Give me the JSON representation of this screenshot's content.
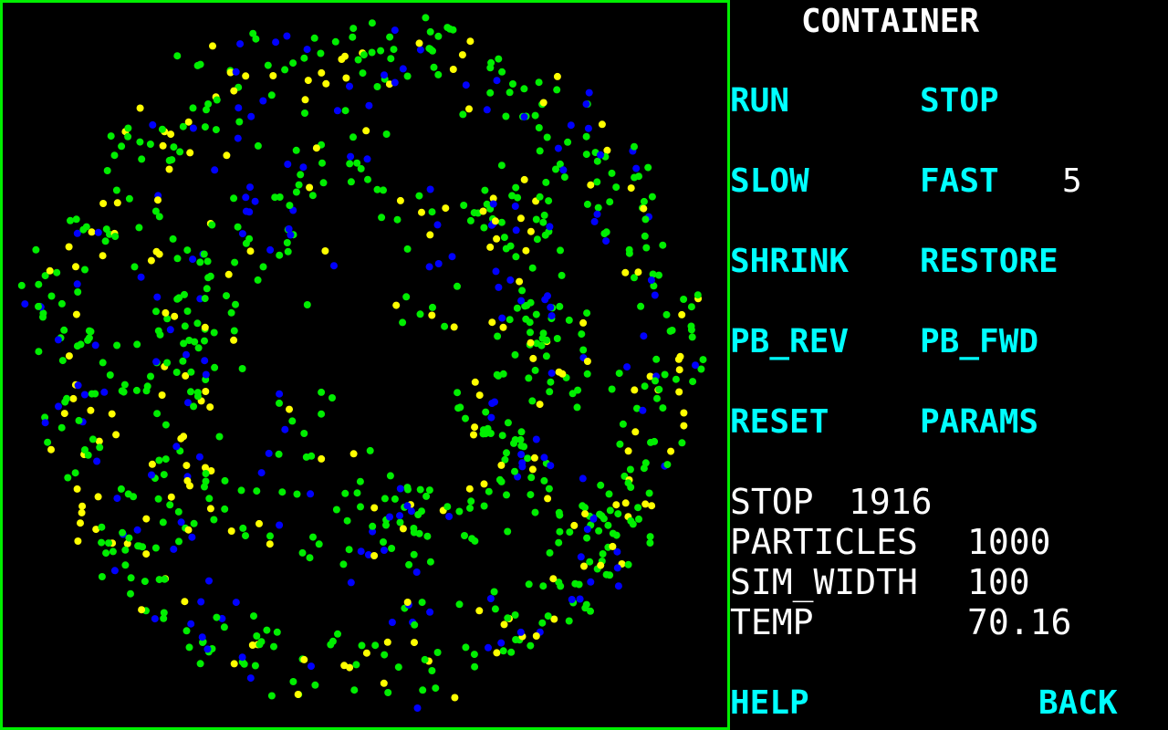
{
  "title": "CONTAINER",
  "colors": {
    "background": "#000000",
    "border": "#00ee00",
    "button": "#00ffff",
    "text": "#ffffff",
    "particle_green": "#00ee00",
    "particle_yellow": "#ffff00",
    "particle_blue": "#0000ff"
  },
  "buttons": {
    "run": "RUN",
    "stop": "STOP",
    "slow": "SLOW",
    "fast": "FAST",
    "shrink": "SHRINK",
    "restore": "RESTORE",
    "pb_rev": "PB_REV",
    "pb_fwd": "PB_FWD",
    "reset": "RESET",
    "params": "PARAMS",
    "help": "HELP",
    "back": "BACK"
  },
  "speed_value": "5",
  "status": {
    "state_label": "STOP",
    "step_count": "1916",
    "particles_label": "PARTICLES",
    "particles_value": "1000",
    "sim_width_label": "SIM_WIDTH",
    "sim_width_value": "100",
    "temp_label": "TEMP",
    "temp_value": "70.16"
  },
  "simulation": {
    "particle_count": 1000,
    "color_mix": {
      "green": 0.62,
      "yellow": 0.22,
      "blue": 0.16
    }
  }
}
